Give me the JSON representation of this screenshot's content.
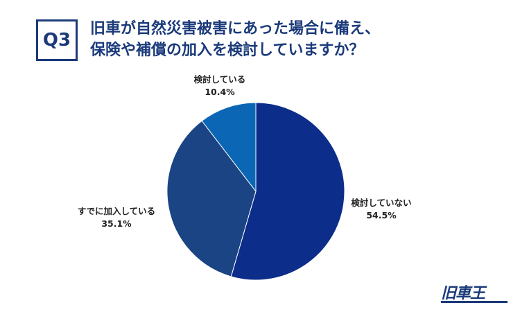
{
  "question_label": "Q3",
  "title_lines": [
    "旧車が自然災害被害にあった場合に備え、",
    "保険や補償の加入を検討していますか？"
  ],
  "logo_text": "旧車王",
  "chart_data": {
    "type": "pie",
    "title": "旧車が自然災害被害にあった場合に備え、保険や補償の加入を検討していますか？",
    "start_angle_deg": 0,
    "direction": "clockwise",
    "slices": [
      {
        "label": "検討していない",
        "value": 54.5,
        "display": "54.5%",
        "color": "#0c2d8a"
      },
      {
        "label": "すでに加入している",
        "value": 35.1,
        "display": "35.1%",
        "color": "#1a4483"
      },
      {
        "label": "検討している",
        "value": 10.4,
        "display": "10.4%",
        "color": "#0b67b5"
      }
    ]
  }
}
